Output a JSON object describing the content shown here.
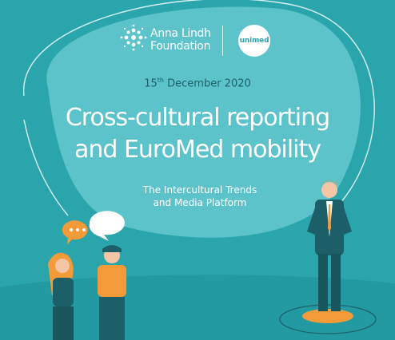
{
  "organizer": {
    "logo_line1": "Anna Lindh",
    "logo_line2": "Foundation",
    "partner": "unimed"
  },
  "event": {
    "date_day": "15",
    "date_suffix": "th",
    "date_rest": " December 2020",
    "title_line1": "Cross-cultural reporting",
    "title_line2": "and EuroMed mobility",
    "subtitle_line1": "The Intercultural Trends",
    "subtitle_line2": "and Media Platform"
  },
  "colors": {
    "background": "#2aa5ac",
    "bubble": "#5cc3cb",
    "date_text": "#1c5f68",
    "accent_orange": "#f29b38"
  },
  "icons": [
    "anna-lindh-logo-icon",
    "speech-bubble-icon",
    "chat-bubble-icon"
  ]
}
